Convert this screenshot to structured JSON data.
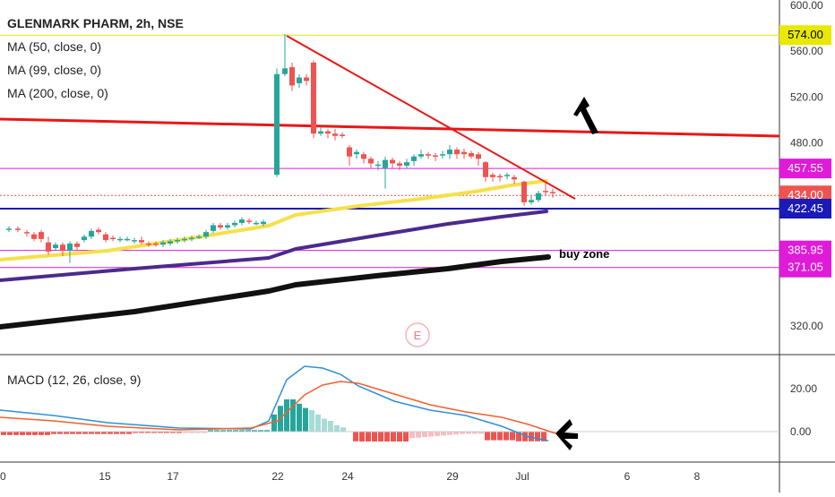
{
  "header": {
    "symbol_title": "GLENMARK PHARM, 2h, NSE",
    "indicators": [
      "MA (50, close, 0)",
      "MA (99, close, 0)",
      "MA (200, close, 0)"
    ],
    "macd_label": "MACD (12, 26, close, 9)"
  },
  "colors": {
    "bull": "#26a69a",
    "bear": "#ef5350",
    "ma50": "#f5e04a",
    "ma99": "#4b2a8c",
    "ma200": "#111111",
    "trendline": "#e81717",
    "support_blue": "#1a1ab8",
    "level_magenta": "#e01ad9",
    "level_yellow": "#e8e800",
    "macd_line": "#2f8fd6",
    "signal_line": "#f06030"
  },
  "chart_data": {
    "type": "line",
    "price_axis": {
      "ticks": [
        "600.00",
        "560.00",
        "520.00",
        "480.00",
        "320.00"
      ],
      "tick_values": [
        600,
        560,
        520,
        480,
        320
      ]
    },
    "macd_axis": {
      "ticks": [
        "20.00",
        "0.00"
      ],
      "tick_values": [
        20,
        0
      ]
    },
    "x_axis_ticks": [
      "0",
      "15",
      "17",
      "22",
      "24",
      "29",
      "Jul",
      "6",
      "8"
    ],
    "price_levels": [
      {
        "value": 574.0,
        "label": "574.00",
        "color": "#e8e800"
      },
      {
        "value": 457.55,
        "label": "457.55",
        "color": "#e01ad9"
      },
      {
        "value": 434.0,
        "label": "434.00",
        "color": "#ef5350"
      },
      {
        "value": 422.45,
        "label": "422.45",
        "color": "#1a1ab8"
      },
      {
        "value": 385.95,
        "label": "385.95",
        "color": "#e01ad9"
      },
      {
        "value": 371.05,
        "label": "371.05",
        "color": "#e01ad9"
      }
    ],
    "annotations": [
      "buy zone",
      "E"
    ]
  }
}
